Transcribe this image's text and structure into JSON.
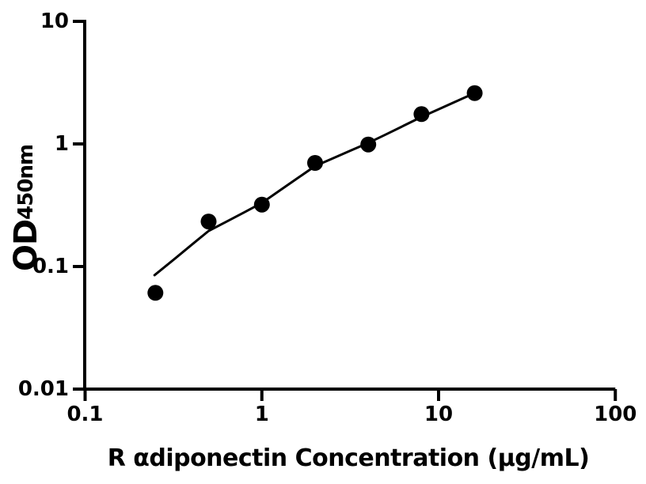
{
  "chart_data": {
    "type": "scatter",
    "title": "",
    "xlabel": "R αdiponectin Concentration (µg/mL)",
    "ylabel": "OD",
    "ylabel_subscript": "450nm",
    "x_scale": "log",
    "y_scale": "log",
    "xlim": [
      0.1,
      100
    ],
    "ylim": [
      0.01,
      10
    ],
    "grid": false,
    "legend": null,
    "background_color": "#ffffff",
    "axis_color": "#000000",
    "marker_color": "#000000",
    "line_color": "#000000",
    "marker_shape": "circle",
    "x_ticks": [
      {
        "value": 0.1,
        "label": "0.1"
      },
      {
        "value": 1,
        "label": "1"
      },
      {
        "value": 10,
        "label": "10"
      },
      {
        "value": 100,
        "label": "100"
      }
    ],
    "y_ticks": [
      {
        "value": 0.01,
        "label": "0.01"
      },
      {
        "value": 0.1,
        "label": "0.1"
      },
      {
        "value": 1,
        "label": "1"
      },
      {
        "value": 10,
        "label": "10"
      }
    ],
    "points": [
      {
        "x": 0.25,
        "y": 0.061
      },
      {
        "x": 0.5,
        "y": 0.233
      },
      {
        "x": 1,
        "y": 0.32
      },
      {
        "x": 2,
        "y": 0.7
      },
      {
        "x": 4,
        "y": 0.99
      },
      {
        "x": 8,
        "y": 1.75
      },
      {
        "x": 16,
        "y": 2.6
      }
    ],
    "curve_points": [
      {
        "x": 0.247,
        "y": 0.085
      },
      {
        "x": 0.32,
        "y": 0.115
      },
      {
        "x": 0.4,
        "y": 0.15
      },
      {
        "x": 0.5,
        "y": 0.195
      },
      {
        "x": 0.63,
        "y": 0.232
      },
      {
        "x": 0.8,
        "y": 0.278
      },
      {
        "x": 1.0,
        "y": 0.33
      },
      {
        "x": 1.26,
        "y": 0.416
      },
      {
        "x": 1.59,
        "y": 0.525
      },
      {
        "x": 2.0,
        "y": 0.66
      },
      {
        "x": 2.52,
        "y": 0.763
      },
      {
        "x": 3.17,
        "y": 0.881
      },
      {
        "x": 4.0,
        "y": 1.02
      },
      {
        "x": 5.0,
        "y": 1.19
      },
      {
        "x": 6.35,
        "y": 1.41
      },
      {
        "x": 8.0,
        "y": 1.66
      },
      {
        "x": 10.1,
        "y": 1.93
      },
      {
        "x": 12.7,
        "y": 2.24
      },
      {
        "x": 15.8,
        "y": 2.58
      }
    ]
  }
}
